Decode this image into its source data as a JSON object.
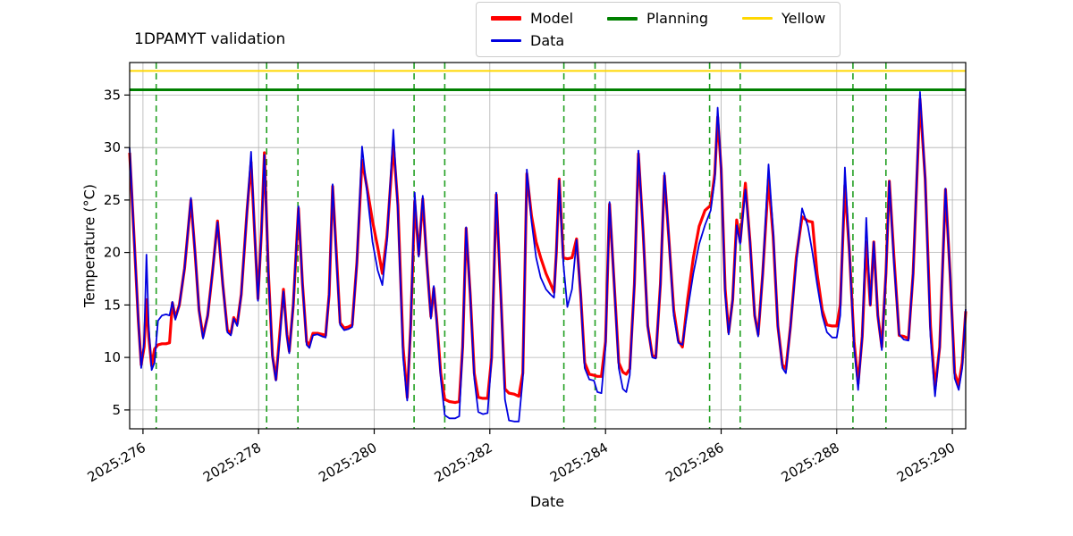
{
  "chart_data": {
    "type": "line",
    "title": "1DPAMYT validation",
    "xlabel": "Date",
    "ylabel": "Temperature (°C)",
    "xlim": [
      275.77,
      290.23
    ],
    "ylim": [
      3.2,
      38.1
    ],
    "grid": true,
    "legend_position": "top-center-outside",
    "xticks": [
      {
        "value": 276,
        "label": "2025:276"
      },
      {
        "value": 278,
        "label": "2025:278"
      },
      {
        "value": 280,
        "label": "2025:280"
      },
      {
        "value": 282,
        "label": "2025:282"
      },
      {
        "value": 284,
        "label": "2025:284"
      },
      {
        "value": 286,
        "label": "2025:286"
      },
      {
        "value": 288,
        "label": "2025:288"
      },
      {
        "value": 290,
        "label": "2025:290"
      }
    ],
    "yticks": [
      5,
      10,
      15,
      20,
      25,
      30,
      35
    ],
    "legend": [
      {
        "label": "Model",
        "color": "#ff0000",
        "thickness": 5
      },
      {
        "label": "Data",
        "color": "#0000e0",
        "thickness": 3
      },
      {
        "label": "Planning",
        "color": "#008000",
        "thickness": 4
      },
      {
        "label": "Yellow",
        "color": "#ffd700",
        "thickness": 3
      }
    ],
    "threshold_lines": [
      {
        "label": "Planning",
        "y": 35.5,
        "color": "#008000",
        "width": 3
      },
      {
        "label": "Yellow",
        "y": 37.3,
        "color": "#ffd700",
        "width": 2
      }
    ],
    "event_lines": {
      "color": "#22a022",
      "style": "dashed",
      "x": [
        276.23,
        278.14,
        278.68,
        280.69,
        281.22,
        283.28,
        283.82,
        285.8,
        286.33,
        288.28,
        288.85
      ]
    },
    "x": [
      275.77,
      275.85,
      275.92,
      275.97,
      276.02,
      276.06,
      276.1,
      276.15,
      276.2,
      276.26,
      276.33,
      276.4,
      276.46,
      276.51,
      276.56,
      276.63,
      276.72,
      276.83,
      276.9,
      276.97,
      277.04,
      277.12,
      277.2,
      277.29,
      277.38,
      277.46,
      277.52,
      277.57,
      277.63,
      277.7,
      277.8,
      277.87,
      277.93,
      277.99,
      278.05,
      278.1,
      278.17,
      278.24,
      278.3,
      278.37,
      278.43,
      278.49,
      278.53,
      278.6,
      278.69,
      278.76,
      278.83,
      278.88,
      278.94,
      279.02,
      279.1,
      279.16,
      279.22,
      279.28,
      279.34,
      279.41,
      279.48,
      279.55,
      279.62,
      279.7,
      279.79,
      279.88,
      279.97,
      280.06,
      280.14,
      280.22,
      280.33,
      280.41,
      280.5,
      280.57,
      280.63,
      280.7,
      280.77,
      280.84,
      280.91,
      280.98,
      281.03,
      281.08,
      281.15,
      281.22,
      281.3,
      281.4,
      281.47,
      281.53,
      281.59,
      281.66,
      281.73,
      281.8,
      281.88,
      281.96,
      282.03,
      282.11,
      282.19,
      282.26,
      282.33,
      282.42,
      282.5,
      282.57,
      282.64,
      282.72,
      282.8,
      282.88,
      282.97,
      283.05,
      283.11,
      283.15,
      283.2,
      283.27,
      283.34,
      283.42,
      283.5,
      283.57,
      283.64,
      283.72,
      283.8,
      283.86,
      283.93,
      284.0,
      284.07,
      284.15,
      284.23,
      284.3,
      284.36,
      284.42,
      284.5,
      284.57,
      284.65,
      284.73,
      284.81,
      284.87,
      284.95,
      285.02,
      285.1,
      285.18,
      285.26,
      285.33,
      285.42,
      285.52,
      285.62,
      285.72,
      285.82,
      285.89,
      285.94,
      286.0,
      286.07,
      286.13,
      286.2,
      286.27,
      286.33,
      286.42,
      286.5,
      286.58,
      286.64,
      286.72,
      286.82,
      286.9,
      286.98,
      287.06,
      287.12,
      287.2,
      287.3,
      287.4,
      287.5,
      287.58,
      287.66,
      287.75,
      287.83,
      287.92,
      288.0,
      288.06,
      288.14,
      288.22,
      288.3,
      288.37,
      288.44,
      288.51,
      288.58,
      288.64,
      288.71,
      288.78,
      288.85,
      288.91,
      288.99,
      289.08,
      289.16,
      289.24,
      289.32,
      289.44,
      289.53,
      289.62,
      289.7,
      289.78,
      289.88,
      289.96,
      290.04,
      290.11,
      290.17,
      290.23
    ],
    "series": [
      {
        "name": "Model",
        "color": "#ff0000",
        "width": 3.2,
        "y": [
          29.5,
          21.0,
          13.5,
          9.3,
          11.0,
          15.5,
          12.0,
          9.2,
          10.8,
          11.2,
          11.3,
          11.3,
          11.4,
          15.2,
          13.8,
          15.0,
          18.5,
          25.0,
          20.0,
          14.5,
          12.0,
          14.0,
          18.0,
          23.0,
          17.0,
          12.6,
          12.3,
          13.8,
          13.2,
          16.0,
          24.0,
          28.6,
          22.0,
          15.6,
          22.0,
          29.5,
          18.0,
          10.2,
          7.9,
          12.5,
          16.5,
          12.2,
          10.6,
          15.0,
          24.2,
          17.0,
          11.5,
          11.2,
          12.3,
          12.3,
          12.2,
          12.1,
          16.0,
          26.3,
          20.5,
          13.3,
          12.8,
          12.9,
          13.1,
          19.0,
          28.8,
          26.0,
          23.0,
          20.5,
          18.0,
          21.5,
          30.3,
          24.5,
          11.0,
          6.2,
          13.0,
          24.9,
          19.8,
          25.1,
          19.0,
          13.9,
          16.6,
          13.6,
          8.5,
          6.0,
          5.8,
          5.7,
          5.8,
          11.0,
          22.3,
          16.0,
          8.5,
          6.2,
          6.1,
          6.1,
          10.0,
          25.5,
          16.0,
          7.0,
          6.6,
          6.5,
          6.3,
          8.5,
          27.5,
          23.5,
          21.0,
          19.5,
          18.0,
          17.0,
          16.2,
          20.0,
          27.0,
          19.5,
          19.4,
          19.5,
          21.3,
          16.0,
          9.5,
          8.4,
          8.3,
          8.2,
          8.2,
          11.5,
          24.6,
          17.0,
          9.5,
          8.6,
          8.4,
          8.9,
          17.0,
          29.4,
          22.0,
          13.0,
          10.2,
          10.0,
          17.0,
          27.3,
          21.0,
          14.5,
          11.6,
          11.0,
          15.5,
          19.5,
          22.5,
          24.0,
          24.5,
          27.5,
          32.9,
          28.0,
          16.5,
          12.4,
          15.5,
          23.1,
          21.0,
          26.6,
          21.0,
          14.0,
          12.2,
          18.0,
          27.0,
          21.5,
          13.0,
          9.3,
          8.9,
          13.0,
          19.5,
          23.4,
          23.0,
          22.9,
          18.0,
          14.5,
          13.1,
          13.0,
          13.0,
          15.0,
          26.4,
          20.0,
          11.5,
          7.5,
          12.0,
          21.0,
          15.0,
          21.0,
          14.0,
          11.0,
          18.0,
          26.8,
          19.5,
          12.1,
          12.0,
          11.8,
          18.0,
          34.6,
          27.0,
          13.0,
          7.0,
          11.0,
          26.0,
          18.0,
          8.5,
          7.4,
          9.5,
          14.4
        ]
      },
      {
        "name": "Data",
        "color": "#0000e0",
        "width": 1.8,
        "y": [
          30.0,
          21.0,
          13.5,
          9.0,
          11.5,
          19.8,
          13.0,
          8.8,
          9.5,
          13.5,
          14.0,
          14.1,
          14.0,
          15.3,
          13.6,
          15.0,
          18.5,
          25.2,
          20.0,
          14.5,
          11.8,
          14.0,
          18.0,
          22.9,
          17.0,
          12.4,
          12.1,
          13.7,
          13.0,
          16.0,
          24.0,
          29.6,
          22.0,
          15.4,
          22.0,
          29.3,
          18.0,
          10.0,
          7.8,
          12.0,
          16.3,
          12.0,
          10.4,
          15.0,
          24.4,
          17.0,
          11.2,
          10.9,
          12.1,
          12.2,
          12.0,
          11.9,
          16.0,
          26.5,
          20.0,
          13.1,
          12.6,
          12.7,
          12.9,
          19.0,
          30.1,
          25.5,
          21.0,
          18.3,
          16.9,
          21.0,
          31.7,
          24.0,
          10.0,
          5.9,
          13.0,
          25.7,
          19.6,
          25.4,
          19.0,
          13.7,
          16.8,
          13.4,
          8.0,
          4.5,
          4.2,
          4.2,
          4.4,
          11.0,
          22.4,
          16.0,
          8.0,
          4.8,
          4.6,
          4.7,
          10.0,
          25.7,
          16.0,
          6.0,
          4.0,
          3.9,
          3.9,
          8.0,
          27.9,
          23.0,
          19.5,
          17.6,
          16.5,
          16.0,
          15.7,
          20.0,
          26.9,
          19.0,
          14.8,
          16.5,
          21.2,
          16.0,
          9.0,
          7.9,
          7.8,
          6.7,
          6.6,
          11.0,
          24.8,
          17.0,
          9.0,
          7.0,
          6.7,
          8.3,
          17.0,
          29.7,
          22.0,
          13.0,
          10.0,
          9.9,
          17.0,
          27.6,
          21.0,
          14.0,
          11.4,
          11.2,
          14.5,
          18.0,
          20.8,
          22.6,
          24.0,
          27.0,
          33.8,
          28.0,
          16.0,
          12.2,
          15.5,
          22.6,
          20.8,
          26.0,
          21.0,
          14.0,
          12.0,
          18.0,
          28.4,
          22.0,
          13.0,
          9.0,
          8.5,
          13.0,
          19.0,
          24.2,
          22.5,
          20.0,
          17.0,
          14.0,
          12.4,
          11.9,
          11.9,
          14.0,
          28.1,
          20.0,
          11.0,
          6.9,
          12.0,
          23.3,
          15.0,
          21.0,
          14.0,
          10.7,
          18.0,
          26.8,
          19.0,
          12.2,
          11.7,
          11.6,
          18.0,
          35.3,
          27.0,
          12.0,
          6.3,
          11.0,
          26.1,
          18.0,
          8.0,
          6.9,
          9.0,
          14.6
        ]
      }
    ]
  }
}
